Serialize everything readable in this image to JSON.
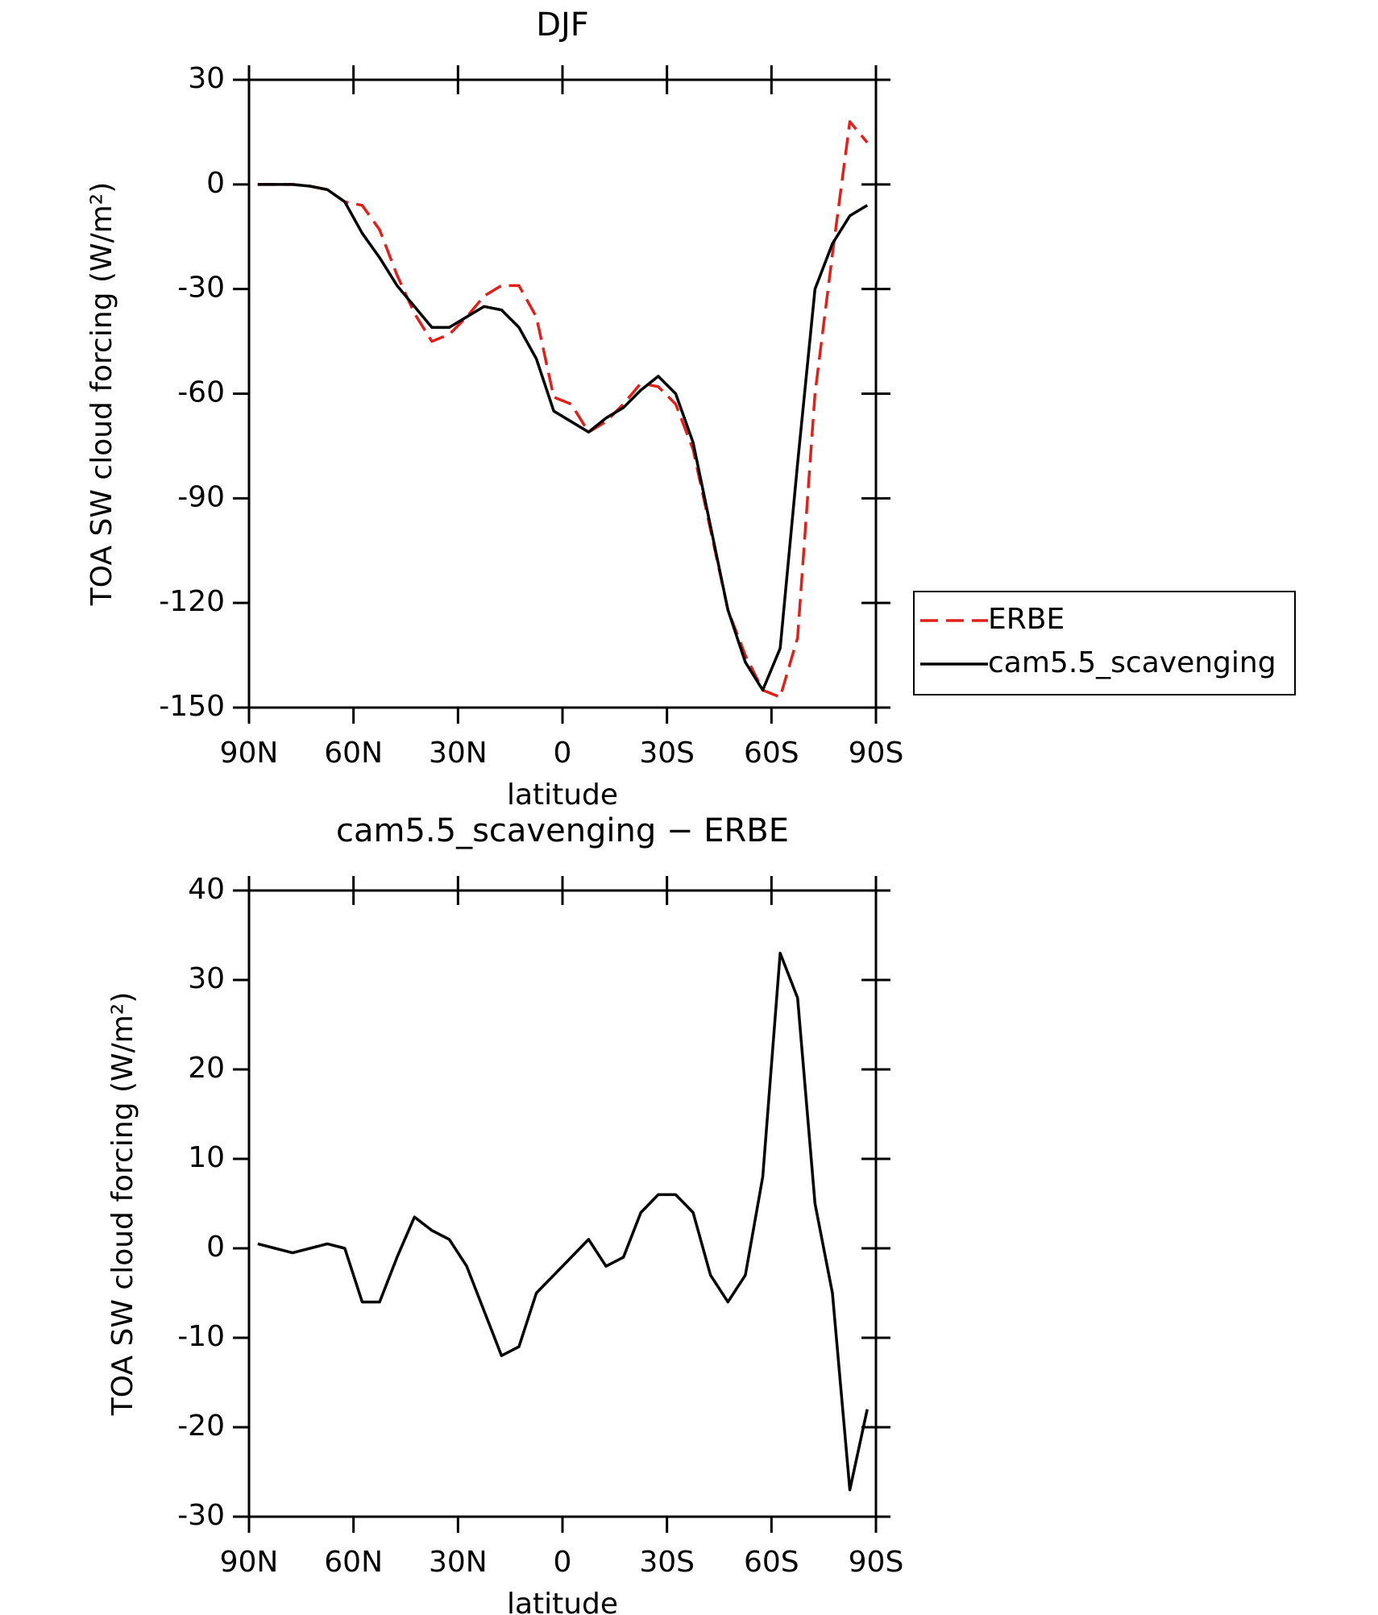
{
  "chart_data": [
    {
      "type": "line",
      "title": "DJF",
      "xlabel": "latitude",
      "ylabel": "TOA SW cloud forcing (W/m²)",
      "x": [
        87.5,
        82.5,
        77.5,
        72.5,
        67.5,
        62.5,
        57.5,
        52.5,
        47.5,
        42.5,
        37.5,
        32.5,
        27.5,
        22.5,
        17.5,
        12.5,
        7.5,
        2.5,
        -2.5,
        -7.5,
        -12.5,
        -17.5,
        -22.5,
        -27.5,
        -32.5,
        -37.5,
        -42.5,
        -47.5,
        -52.5,
        -57.5,
        -62.5,
        -67.5,
        -72.5,
        -77.5,
        -82.5,
        -87.5
      ],
      "series": [
        {
          "name": "ERBE",
          "color": "#e0201b",
          "dash": true,
          "values": [
            0,
            0,
            0,
            -0.5,
            -1.5,
            -5,
            -6,
            -13,
            -26,
            -37,
            -45,
            -43,
            -38,
            -32,
            -29,
            -29,
            -38,
            -61,
            -63,
            -71,
            -68,
            -63,
            -57,
            -58,
            -63,
            -76,
            -99,
            -122,
            -135,
            -145,
            -147,
            -130,
            -60,
            -20,
            18,
            12
          ]
        },
        {
          "name": "cam5.5_scavenging",
          "color": "#000000",
          "dash": false,
          "values": [
            0,
            0,
            0,
            -0.5,
            -1.5,
            -5,
            -14,
            -21,
            -29,
            -35,
            -41,
            -41,
            -38,
            -35,
            -36,
            -41,
            -50,
            -65,
            -68,
            -71,
            -67,
            -64,
            -59,
            -55,
            -60,
            -74,
            -98,
            -122,
            -137,
            -145,
            -133,
            -80,
            -30,
            -17,
            -9,
            -6
          ]
        }
      ],
      "xlim": [
        90,
        -90
      ],
      "xticks": [
        {
          "value": 90,
          "label": "90N"
        },
        {
          "value": 60,
          "label": "60N"
        },
        {
          "value": 30,
          "label": "30N"
        },
        0,
        {
          "value": -30,
          "label": "30S"
        },
        {
          "value": -60,
          "label": "60S"
        },
        {
          "value": -90,
          "label": "90S"
        }
      ],
      "ylim": [
        -150,
        30
      ],
      "yticks": [
        -150,
        -120,
        -90,
        -60,
        -30,
        0,
        30
      ],
      "legend": "right"
    },
    {
      "type": "line",
      "title": "cam5.5_scavenging − ERBE",
      "xlabel": "latitude",
      "ylabel": "TOA SW cloud forcing (W/m²)",
      "x": [
        87.5,
        82.5,
        77.5,
        72.5,
        67.5,
        62.5,
        57.5,
        52.5,
        47.5,
        42.5,
        37.5,
        32.5,
        27.5,
        22.5,
        17.5,
        12.5,
        7.5,
        2.5,
        -2.5,
        -7.5,
        -12.5,
        -17.5,
        -22.5,
        -27.5,
        -32.5,
        -37.5,
        -42.5,
        -47.5,
        -52.5,
        -57.5,
        -62.5,
        -67.5,
        -72.5,
        -77.5,
        -82.5,
        -87.5
      ],
      "series": [
        {
          "color": "#000000",
          "dash": false,
          "values": [
            0.5,
            0,
            -0.5,
            0,
            0.5,
            0,
            -6,
            -6,
            -1,
            3.5,
            2,
            1,
            -2,
            -7,
            -12,
            -11,
            -5,
            -3,
            -1,
            1,
            -2,
            -1,
            4,
            6,
            6,
            4,
            -3,
            -6,
            -3,
            8,
            33,
            28,
            5,
            -5,
            -27,
            -18
          ]
        }
      ],
      "xlim": [
        90,
        -90
      ],
      "xticks": [
        {
          "value": 90,
          "label": "90N"
        },
        {
          "value": 60,
          "label": "60N"
        },
        {
          "value": 30,
          "label": "30N"
        },
        0,
        {
          "value": -30,
          "label": "30S"
        },
        {
          "value": -60,
          "label": "60S"
        },
        {
          "value": -90,
          "label": "90S"
        }
      ],
      "ylim": [
        -30,
        40
      ],
      "yticks": [
        -30,
        -20,
        -10,
        0,
        10,
        20,
        30,
        40
      ]
    }
  ]
}
